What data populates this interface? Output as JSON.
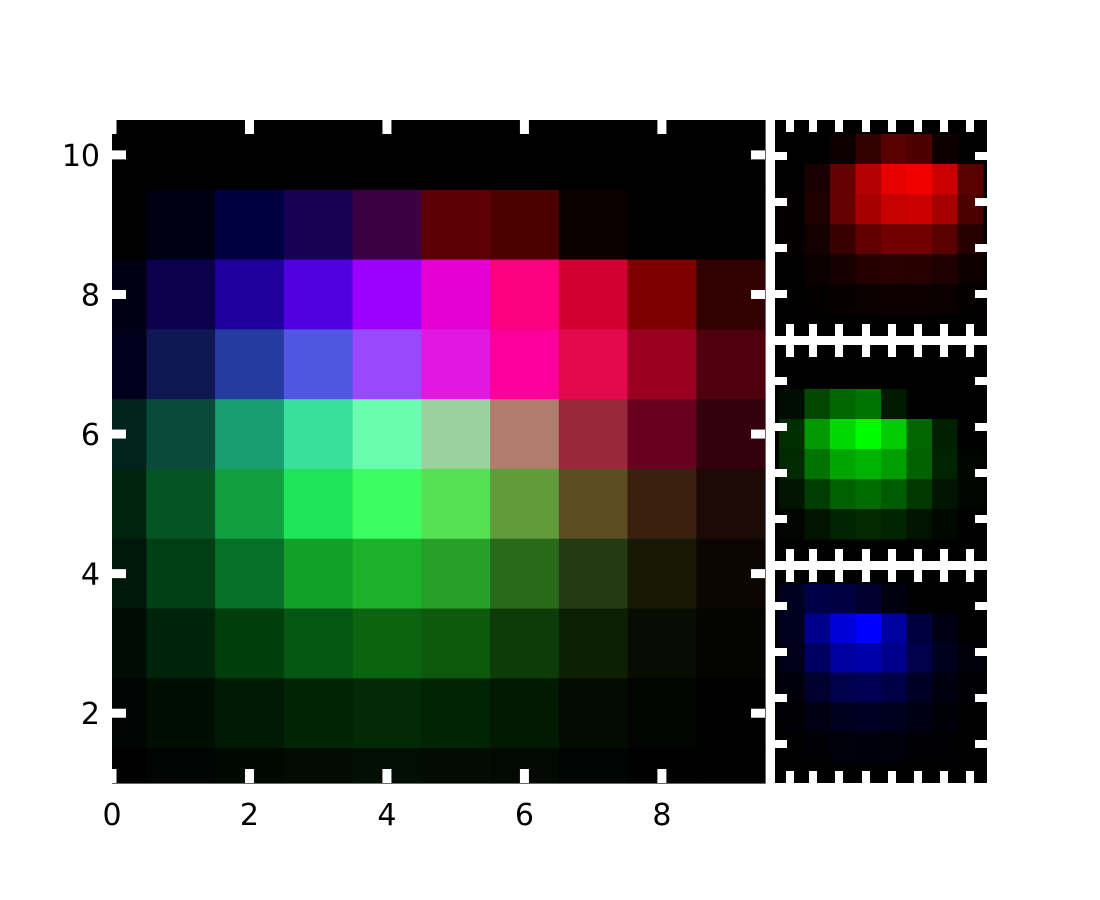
{
  "chart_data": [
    {
      "type": "heatmap",
      "name": "rgb-composite",
      "title": "",
      "xlabel": "",
      "ylabel": "",
      "xlim": [
        0,
        9.5
      ],
      "ylim": [
        1,
        10.5
      ],
      "x_ticks": [
        0,
        2,
        4,
        6,
        8
      ],
      "y_ticks": [
        2,
        4,
        6,
        8,
        10
      ],
      "x_tick_labels": [
        "0",
        "2",
        "4",
        "6",
        "8"
      ],
      "y_tick_labels": [
        "2",
        "4",
        "6",
        "8",
        "10"
      ],
      "x_centers": [
        0,
        1,
        2,
        3,
        4,
        5,
        6,
        7,
        8,
        9
      ],
      "y_centers": [
        10,
        9,
        8,
        7,
        6,
        5,
        4,
        3,
        2,
        1
      ],
      "grid": false,
      "rows": [
        [
          "#000000",
          "#000000",
          "#000000",
          "#000000",
          "#000000",
          "#000000",
          "#000000",
          "#000000",
          "#000000",
          "#000000"
        ],
        [
          "#000000",
          "#000014",
          "#000040",
          "#180054",
          "#3c0042",
          "#5c0006",
          "#4c0000",
          "#0a0000",
          "#000000",
          "#000000"
        ],
        [
          "#000014",
          "#0c004a",
          "#20009c",
          "#5000de",
          "#9c00fe",
          "#e400d2",
          "#fc0080",
          "#d20030",
          "#7e0000",
          "#320000"
        ],
        [
          "#00001c",
          "#101854",
          "#243c9e",
          "#5056e0",
          "#9a48fc",
          "#e018e0",
          "#fc009c",
          "#e4084c",
          "#9a0020",
          "#50000c"
        ],
        [
          "#00241c",
          "#0a4a3c",
          "#189e70",
          "#38e09a",
          "#6cfcb0",
          "#9cd09c",
          "#b07c6c",
          "#9a283c",
          "#6a0020",
          "#34000e"
        ],
        [
          "#00240e",
          "#045424",
          "#10a040",
          "#1ee45a",
          "#3cfe60",
          "#56e054",
          "#629c3a",
          "#5c4e22",
          "#3a200e",
          "#1c0a06"
        ],
        [
          "#00180a",
          "#003e14",
          "#067028",
          "#12a02a",
          "#1cb22a",
          "#26a028",
          "#286a1a",
          "#243a10",
          "#181806",
          "#0c0602"
        ],
        [
          "#000c04",
          "#00240a",
          "#003e0c",
          "#045812",
          "#0a6410",
          "#0e5a0c",
          "#0e3c08",
          "#0c2004",
          "#080c02",
          "#040402"
        ],
        [
          "#000402",
          "#000e02",
          "#001a04",
          "#002404",
          "#022a04",
          "#022404",
          "#021a02",
          "#020c02",
          "#020402",
          "#000000"
        ],
        [
          "#000000",
          "#000402",
          "#000802",
          "#020c02",
          "#020e02",
          "#020c02",
          "#020802",
          "#000402",
          "#000000",
          "#000000"
        ]
      ]
    },
    {
      "type": "heatmap",
      "name": "red-channel",
      "title": "",
      "color": "#ff0000",
      "x_ticks": [],
      "y_ticks": [],
      "rows": [
        [
          0.0,
          0.0,
          0.05,
          0.2,
          0.35,
          0.3,
          0.05,
          0.0
        ],
        [
          0.0,
          0.1,
          0.4,
          0.7,
          0.9,
          0.95,
          0.8,
          0.35
        ],
        [
          0.02,
          0.12,
          0.4,
          0.65,
          0.78,
          0.8,
          0.65,
          0.3
        ],
        [
          0.02,
          0.08,
          0.22,
          0.38,
          0.45,
          0.45,
          0.35,
          0.15
        ],
        [
          0.0,
          0.04,
          0.09,
          0.14,
          0.16,
          0.15,
          0.12,
          0.05
        ],
        [
          0.0,
          0.01,
          0.03,
          0.04,
          0.05,
          0.05,
          0.04,
          0.02
        ]
      ]
    },
    {
      "type": "heatmap",
      "name": "green-channel",
      "title": "",
      "color": "#00ff00",
      "x_ticks": [],
      "y_ticks": [],
      "rows": [
        [
          0.0,
          0.0,
          0.0,
          0.0,
          0.0,
          0.0,
          0.0,
          0.0
        ],
        [
          0.05,
          0.28,
          0.4,
          0.45,
          0.1,
          0.0,
          0.0,
          0.0
        ],
        [
          0.18,
          0.6,
          0.85,
          0.98,
          0.8,
          0.4,
          0.12,
          0.0
        ],
        [
          0.16,
          0.45,
          0.65,
          0.7,
          0.62,
          0.38,
          0.14,
          0.02
        ],
        [
          0.08,
          0.24,
          0.38,
          0.42,
          0.36,
          0.22,
          0.08,
          0.02
        ],
        [
          0.02,
          0.08,
          0.14,
          0.16,
          0.14,
          0.08,
          0.03,
          0.0
        ]
      ]
    },
    {
      "type": "heatmap",
      "name": "blue-channel",
      "title": "",
      "color": "#0000ff",
      "x_ticks": [],
      "y_ticks": [],
      "rows": [
        [
          0.12,
          0.28,
          0.26,
          0.18,
          0.06,
          0.0,
          0.0,
          0.0
        ],
        [
          0.12,
          0.55,
          0.85,
          1.0,
          0.62,
          0.25,
          0.08,
          0.0
        ],
        [
          0.1,
          0.38,
          0.62,
          0.66,
          0.55,
          0.3,
          0.12,
          0.04
        ],
        [
          0.05,
          0.18,
          0.3,
          0.33,
          0.28,
          0.15,
          0.06,
          0.02
        ],
        [
          0.02,
          0.07,
          0.12,
          0.14,
          0.12,
          0.07,
          0.03,
          0.0
        ],
        [
          0.0,
          0.02,
          0.04,
          0.05,
          0.04,
          0.02,
          0.01,
          0.0
        ]
      ]
    }
  ]
}
